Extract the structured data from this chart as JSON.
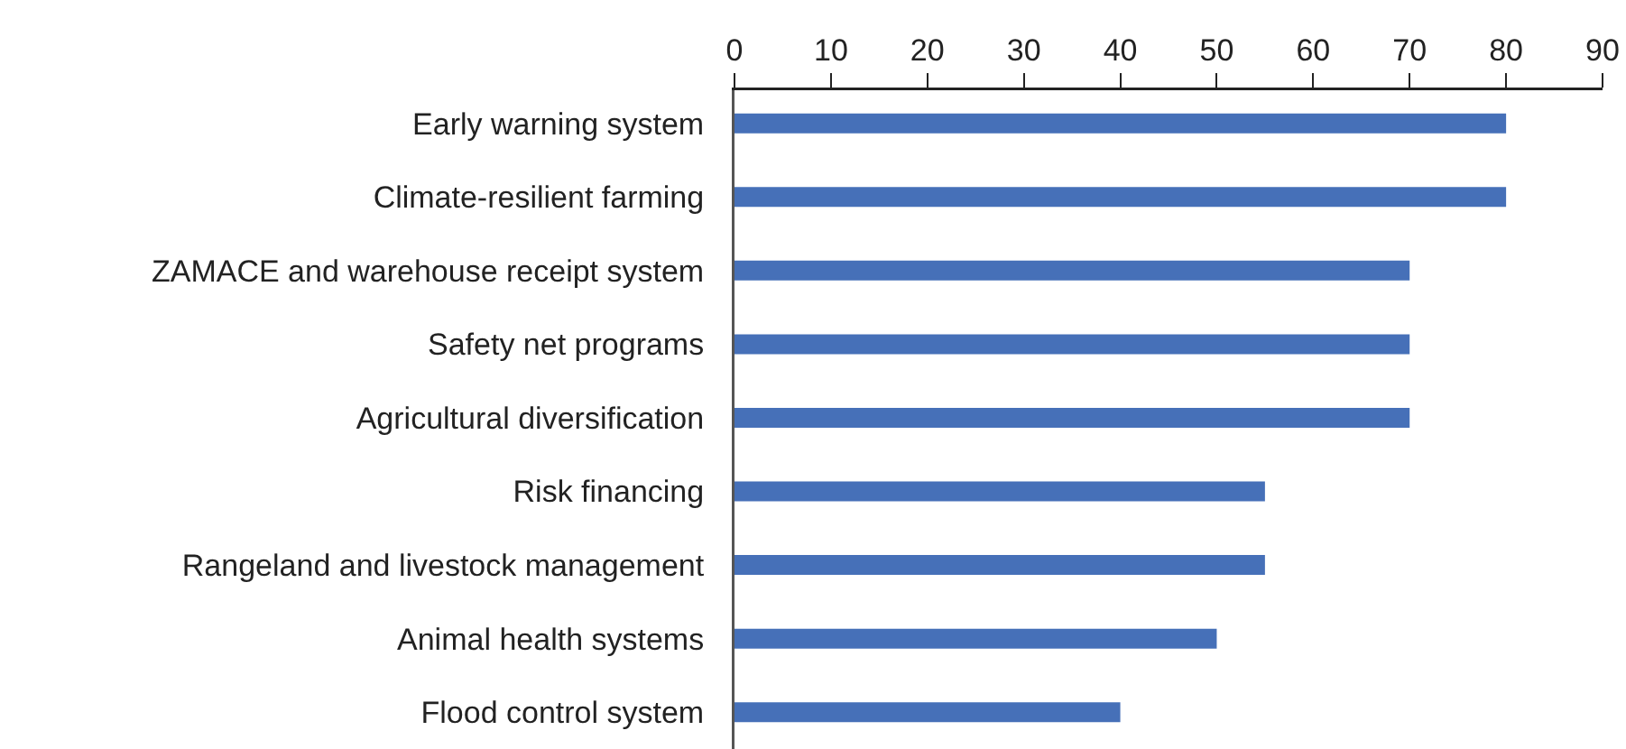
{
  "chart_data": {
    "type": "bar",
    "orientation": "horizontal",
    "categories": [
      "Early warning system",
      "Climate-resilient farming",
      "ZAMACE and warehouse receipt system",
      "Safety net programs",
      "Agricultural diversification",
      "Risk financing",
      "Rangeland and livestock management",
      "Animal health systems",
      "Flood control system"
    ],
    "values": [
      80,
      80,
      70,
      70,
      70,
      55,
      55,
      50,
      40
    ],
    "color": "#4670b8",
    "xlim": [
      0,
      90
    ],
    "xticks": [
      0,
      10,
      20,
      30,
      40,
      50,
      60,
      70,
      80,
      90
    ],
    "grid": false
  }
}
